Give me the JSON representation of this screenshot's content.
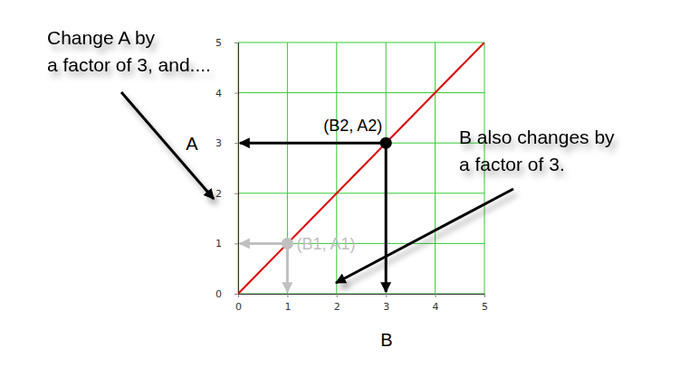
{
  "chart_data": {
    "type": "line",
    "x_label": "B",
    "y_label": "A",
    "x": [
      0,
      5
    ],
    "series": [
      {
        "color": "#dd0000",
        "values": [
          0,
          5
        ]
      }
    ],
    "xlim": [
      0,
      5
    ],
    "ylim": [
      0,
      5
    ],
    "xticks": [
      0,
      1,
      2,
      3,
      4,
      5
    ],
    "yticks": [
      0,
      1,
      2,
      3,
      4,
      5
    ],
    "grid": true,
    "points": [
      {
        "label": "(B1, A1)",
        "x": 1,
        "y": 1,
        "color": "#c0c0c0"
      },
      {
        "label": "(B2, A2)",
        "x": 3,
        "y": 3,
        "color": "#000000"
      }
    ],
    "annotations": [
      {
        "text": [
          "Change A by",
          "a factor of 3, and...."
        ]
      },
      {
        "text": [
          "B also changes by",
          "a factor of 3."
        ]
      }
    ]
  }
}
